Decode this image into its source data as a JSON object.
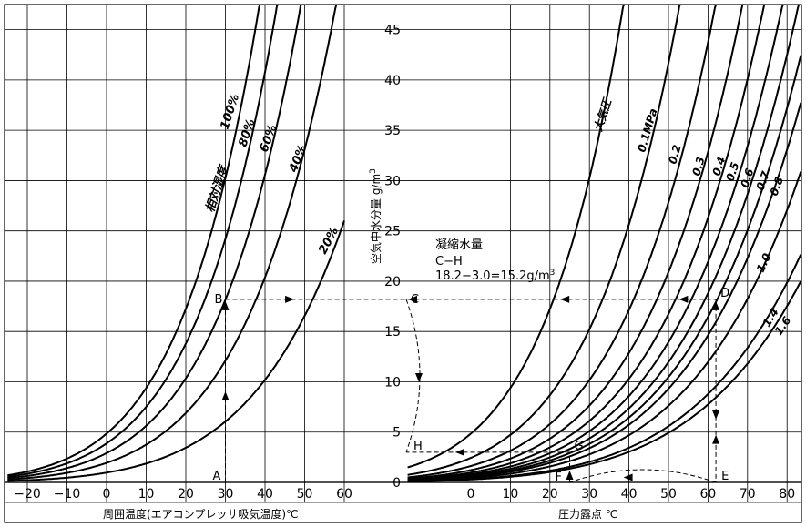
{
  "chart_data": {
    "type": "line",
    "y_axis": {
      "label": "空気中水分量 g/m3",
      "label_main": "空気中水分量 g/m",
      "label_sup": "3",
      "ticks": [
        "0",
        "5",
        "10",
        "15",
        "20",
        "25",
        "30",
        "35",
        "40",
        "45"
      ],
      "ylim": [
        0,
        47.5
      ]
    },
    "left_x_axis": {
      "label": "周囲温度(エアコンプレッサ吸気温度)℃",
      "ticks": [
        "−20",
        "−10",
        "0",
        "10",
        "20",
        "30",
        "40",
        "50",
        "60"
      ],
      "xlim": [
        -25,
        75
      ]
    },
    "right_x_axis": {
      "label": "圧力露点  ℃",
      "ticks": [
        "0",
        "10",
        "20",
        "30",
        "40",
        "50",
        "60",
        "70",
        "80"
      ],
      "xlim": [
        -15,
        83
      ]
    },
    "relative_humidity_title": "相対湿度",
    "relative_humidity_series": [
      {
        "name": "100%",
        "fraction": 1.0
      },
      {
        "name": "80%",
        "fraction": 0.8
      },
      {
        "name": "60%",
        "fraction": 0.6
      },
      {
        "name": "40%",
        "fraction": 0.4
      },
      {
        "name": "20%",
        "fraction": 0.2
      }
    ],
    "pressure_series": [
      {
        "name": "大気圧",
        "pressure_mpa": 0.0
      },
      {
        "name": "0.1MPa",
        "pressure_mpa": 0.1
      },
      {
        "name": "0.2",
        "pressure_mpa": 0.2
      },
      {
        "name": "0.3",
        "pressure_mpa": 0.3
      },
      {
        "name": "0.4",
        "pressure_mpa": 0.4
      },
      {
        "name": "0.5",
        "pressure_mpa": 0.5
      },
      {
        "name": "0.6",
        "pressure_mpa": 0.6
      },
      {
        "name": "0.7",
        "pressure_mpa": 0.7
      },
      {
        "name": "0.8",
        "pressure_mpa": 0.8
      },
      {
        "name": "1.0",
        "pressure_mpa": 1.0
      },
      {
        "name": "1.4",
        "pressure_mpa": 1.4
      },
      {
        "name": "1.6",
        "pressure_mpa": 1.6
      }
    ],
    "points": [
      {
        "label": "A",
        "side": "left",
        "x": 30,
        "y": 0
      },
      {
        "label": "B",
        "side": "left",
        "x": 30,
        "y": 18.2
      },
      {
        "label": "C",
        "side": "axis",
        "x": 0,
        "y": 18.2
      },
      {
        "label": "D",
        "side": "right",
        "x": 62,
        "y": 18.2
      },
      {
        "label": "E",
        "side": "right",
        "x": 62,
        "y": 0
      },
      {
        "label": "F",
        "side": "right",
        "x": 25,
        "y": 0
      },
      {
        "label": "G",
        "side": "right",
        "x": 25,
        "y": 3.0
      },
      {
        "label": "H",
        "side": "axis",
        "x": 0,
        "y": 3.0
      }
    ],
    "annotation": {
      "line1": "凝縮水量",
      "line2": "C−H",
      "line3_main": "18.2−3.0=15.2g/m",
      "line3_sup": "3"
    }
  }
}
